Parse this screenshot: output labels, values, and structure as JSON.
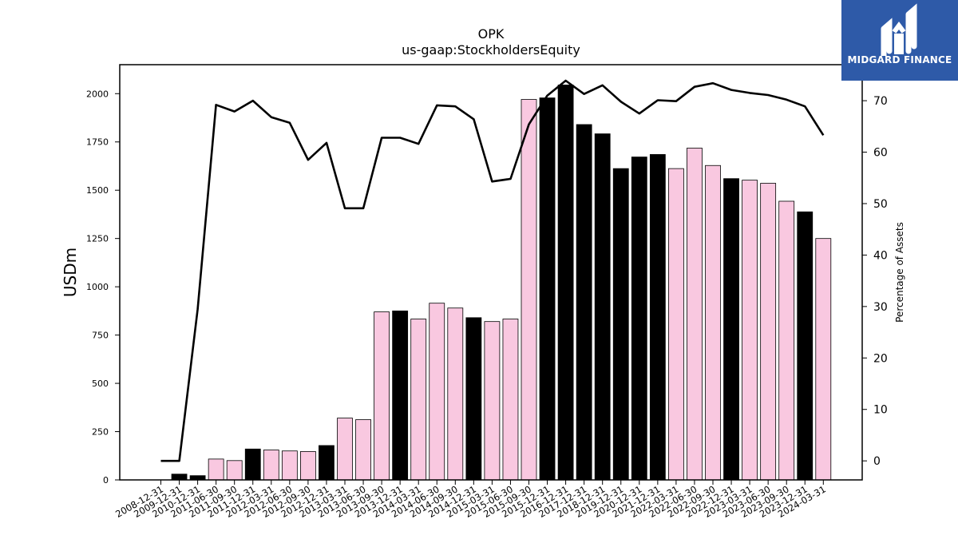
{
  "chart_data": {
    "type": "bar",
    "title": "OPK",
    "subtitle": "us-gaap:StockholdersEquity",
    "ylabel": "USDm",
    "y2label": "Percentage of Assets",
    "ylim": [
      0,
      2150
    ],
    "y2lim": [
      -3.7,
      77
    ],
    "yticks": [
      0,
      250,
      500,
      750,
      1000,
      1250,
      1500,
      1750,
      2000
    ],
    "y2ticks": [
      0,
      10,
      20,
      30,
      40,
      50,
      60,
      70
    ],
    "categories": [
      "2008-12-31",
      "2009-12-31",
      "2010-12-31",
      "2011-06-30",
      "2011-09-30",
      "2011-12-31",
      "2012-03-31",
      "2012-06-30",
      "2012-09-30",
      "2012-12-31",
      "2013-03-31",
      "2013-06-30",
      "2013-09-30",
      "2013-12-31",
      "2014-03-31",
      "2014-06-30",
      "2014-09-30",
      "2014-12-31",
      "2015-03-31",
      "2015-06-30",
      "2015-09-30",
      "2015-12-31",
      "2016-12-31",
      "2017-12-31",
      "2018-12-31",
      "2019-12-31",
      "2020-12-31",
      "2021-12-31",
      "2022-03-31",
      "2022-06-30",
      "2022-09-30",
      "2022-12-31",
      "2023-03-31",
      "2023-06-30",
      "2023-09-30",
      "2023-12-31",
      "2024-03-31"
    ],
    "series": [
      {
        "kind": "bar",
        "values": [
          0,
          30,
          22,
          108,
          100,
          160,
          155,
          150,
          147,
          178,
          320,
          312,
          870,
          875,
          833,
          915,
          890,
          840,
          820,
          833,
          1970,
          1978,
          2045,
          1840,
          1792,
          1612,
          1672,
          1685,
          1612,
          1718,
          1628,
          1560,
          1552,
          1536,
          1443,
          1388,
          1250
        ],
        "colors": [
          "#f9c8e0",
          "#000000",
          "#000000",
          "#f9c8e0",
          "#f9c8e0",
          "#000000",
          "#f9c8e0",
          "#f9c8e0",
          "#f9c8e0",
          "#000000",
          "#f9c8e0",
          "#f9c8e0",
          "#f9c8e0",
          "#000000",
          "#f9c8e0",
          "#f9c8e0",
          "#f9c8e0",
          "#000000",
          "#f9c8e0",
          "#f9c8e0",
          "#f9c8e0",
          "#000000",
          "#000000",
          "#000000",
          "#000000",
          "#000000",
          "#000000",
          "#000000",
          "#f9c8e0",
          "#f9c8e0",
          "#f9c8e0",
          "#000000",
          "#f9c8e0",
          "#f9c8e0",
          "#f9c8e0",
          "#000000",
          "#f9c8e0"
        ]
      },
      {
        "kind": "line",
        "axis": "right",
        "color": "#000000",
        "values": [
          0,
          0,
          29.5,
          69.2,
          67.9,
          70.0,
          66.8,
          65.7,
          58.5,
          61.8,
          49.1,
          49.1,
          62.8,
          62.8,
          61.6,
          69.1,
          68.9,
          66.4,
          54.3,
          54.8,
          65.4,
          71.0,
          73.9,
          71.3,
          73.0,
          69.8,
          67.5,
          70.1,
          69.9,
          72.7,
          73.4,
          72.1,
          71.5,
          71.1,
          70.2,
          68.9,
          63.3
        ]
      }
    ],
    "grid": false,
    "legend": "none"
  },
  "logo": {
    "text": "MIDGARD FINANCE",
    "color": "#2e5aa8"
  }
}
